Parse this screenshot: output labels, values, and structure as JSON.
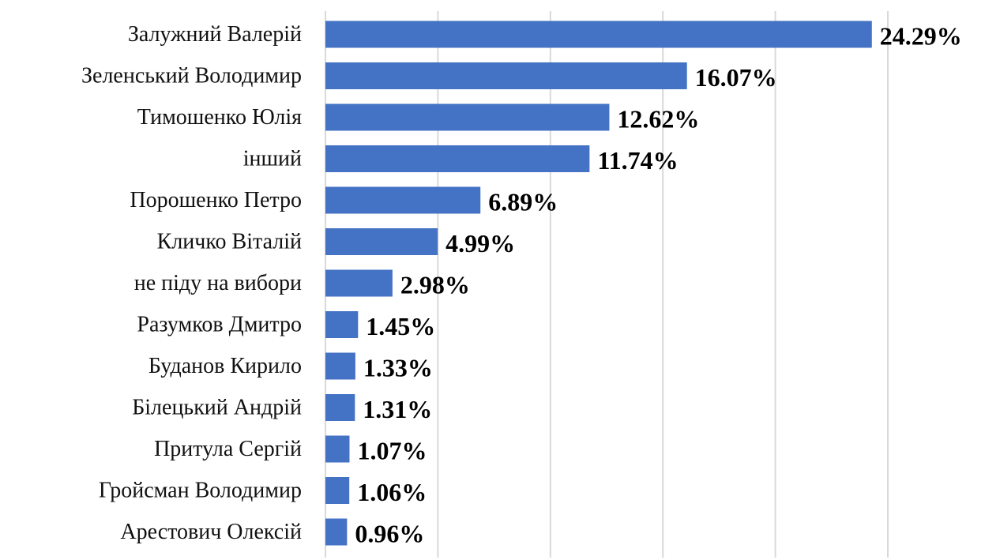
{
  "chart_data": {
    "type": "bar",
    "orientation": "horizontal",
    "title": "",
    "xlabel": "",
    "ylabel": "",
    "categories": [
      "Залужний Валерій",
      "Зеленський Володимир",
      "Тимошенко Юлія",
      "інший",
      "Порошенко Петро",
      "Кличко Віталій",
      "не піду на вибори",
      "Разумков Дмитро",
      "Буданов Кирило",
      "Білецький Андрій",
      "Притула Сергій",
      "Гройсман Володимир",
      "Арестович Олексій"
    ],
    "values": [
      24.29,
      16.07,
      12.62,
      11.74,
      6.89,
      4.99,
      2.98,
      1.45,
      1.33,
      1.31,
      1.07,
      1.06,
      0.96
    ],
    "value_labels": [
      "24.29%",
      "16.07%",
      "12.62%",
      "11.74%",
      "6.89%",
      "4.99%",
      "2.98%",
      "1.45%",
      "1.33%",
      "1.31%",
      "1.07%",
      "1.06%",
      "0.96%"
    ],
    "xlim": [
      0,
      25
    ],
    "x_gridlines": [
      0,
      5,
      10,
      15,
      20,
      25
    ],
    "grid": true,
    "legend": "none",
    "bar_color": "#4472C4",
    "gridline_color": "#D9D9D9"
  }
}
